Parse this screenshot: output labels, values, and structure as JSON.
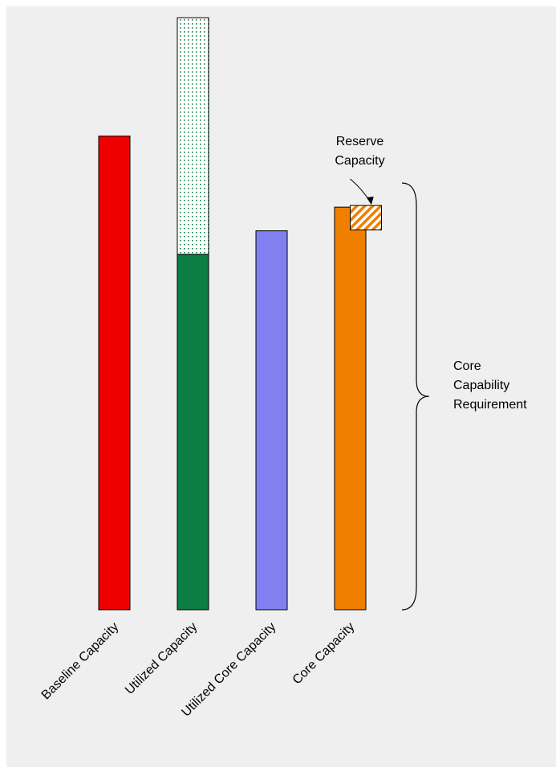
{
  "chart_data": {
    "type": "bar",
    "categories": [
      "Baseline Capacity",
      "Utilized Capacity",
      "Utilized Core Capacity",
      "Core Capacity"
    ],
    "series": [
      {
        "key": "base",
        "values": [
          100,
          75,
          80,
          85
        ],
        "colors": [
          "#ee0000",
          "#0b7d45",
          "#8080f0",
          "#f07f00"
        ],
        "pattern": "solid"
      },
      {
        "key": "excess",
        "values": [
          0,
          50,
          0,
          0
        ],
        "colors": [
          "#0b7d45",
          "#0b7d45",
          "#0b7d45",
          "#0b7d45"
        ],
        "pattern": "dotted"
      },
      {
        "key": "reserve",
        "values": [
          0,
          0,
          0,
          5
        ],
        "colors": [
          "#f07f00",
          "#f07f00",
          "#f07f00",
          "#f07f00"
        ],
        "pattern": "hatched"
      }
    ],
    "ylim": [
      0,
      125
    ],
    "annotations": {
      "reserve": {
        "lines": [
          "Reserve",
          "Capacity"
        ]
      },
      "bracket": {
        "lines": [
          "Core",
          "Capability",
          "Requirement"
        ],
        "range": [
          0,
          85
        ]
      }
    },
    "grid": false,
    "legend": "none"
  },
  "colors": {
    "background": "#efefef",
    "outline": "#000000"
  }
}
